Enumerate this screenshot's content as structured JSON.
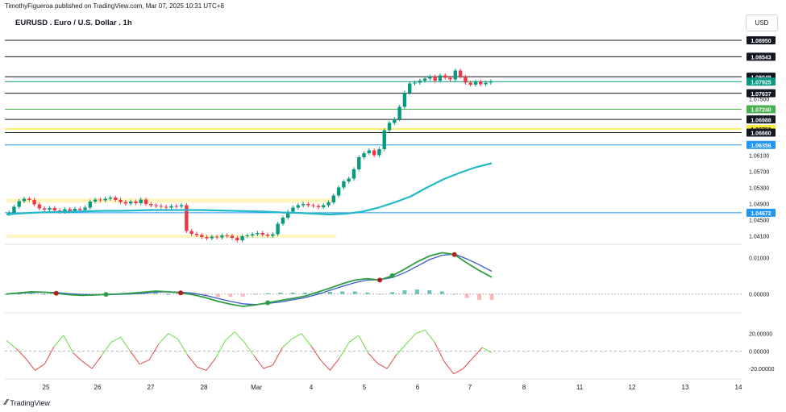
{
  "header": {
    "publish_text": "TimothyFigueroa published on TradingView.com, Mar 07, 2025 10:31 UTC+8",
    "symbol_title": "EURUSD . Euro / U.S. Dollar . 1h",
    "currency_button": "USD",
    "brand": "TradingView"
  },
  "colors": {
    "up_candle": "#089981",
    "down_candle": "#f23645",
    "ma_line": "#22b8c6",
    "macd_line": "#2f9e44",
    "signal_line": "#3a5fcd",
    "macd_down": "#b71c1c",
    "zone_fill": "#fff3b0",
    "level_blue": "#2196f3",
    "level_green": "#4caf50",
    "level_yellow": "#ffeb3b"
  },
  "chart_data": [
    {
      "type": "candlestick",
      "title": "EURUSD . Euro / U.S. Dollar . 1h",
      "x_tick_labels": [
        "25",
        "26",
        "27",
        "28",
        "Mar",
        "4",
        "5",
        "6",
        "7",
        "8",
        "11",
        "12",
        "13",
        "14"
      ],
      "y_axis_labels": [
        "1.06100",
        "1.05700",
        "1.05300",
        "1.04900",
        "1.04500",
        "1.04100",
        "1.07500"
      ],
      "ylim": [
        1.0395,
        1.0915
      ],
      "price_levels": [
        {
          "label": "1.08950",
          "value": 1.0895,
          "style": "black"
        },
        {
          "label": "1.08543",
          "value": 1.08543,
          "style": "black"
        },
        {
          "label": "1.08048",
          "value": 1.08048,
          "style": "black"
        },
        {
          "label": "1.07925",
          "value": 1.07925,
          "style": "teal"
        },
        {
          "label": "1.07637",
          "value": 1.07637,
          "style": "black"
        },
        {
          "label": "1.07240",
          "value": 1.0724,
          "style": "green"
        },
        {
          "label": "1.06988",
          "value": 1.06988,
          "style": "black"
        },
        {
          "label": "1.06750",
          "value": 1.0675,
          "style": "yellow"
        },
        {
          "label": "1.06660",
          "value": 1.0666,
          "style": "black"
        },
        {
          "label": "1.06356",
          "value": 1.06356,
          "style": "blue"
        },
        {
          "label": "1.04672",
          "value": 1.04672,
          "style": "blue"
        }
      ],
      "zones": [
        {
          "x_start": 0,
          "x_end": 65,
          "y_low": 1.0492,
          "y_high": 1.0503
        },
        {
          "x_start": 0,
          "x_end": 65,
          "y_low": 1.0405,
          "y_high": 1.0413
        }
      ],
      "close_series": [
        1.0468,
        1.0482,
        1.0496,
        1.0502,
        1.0499,
        1.0488,
        1.0478,
        1.0475,
        1.0479,
        1.0473,
        1.047,
        1.0476,
        1.0472,
        1.0477,
        1.0474,
        1.048,
        1.0495,
        1.05,
        1.0498,
        1.0502,
        1.0505,
        1.0499,
        1.0494,
        1.049,
        1.0495,
        1.0491,
        1.05,
        1.0489,
        1.0486,
        1.0484,
        1.0482,
        1.048,
        1.0484,
        1.0483,
        1.0486,
        1.0422,
        1.0415,
        1.0412,
        1.0407,
        1.0404,
        1.0408,
        1.0406,
        1.0411,
        1.041,
        1.0405,
        1.0399,
        1.0409,
        1.0411,
        1.0414,
        1.0417,
        1.0413,
        1.041,
        1.0414,
        1.044,
        1.0455,
        1.047,
        1.048,
        1.0486,
        1.0489,
        1.0486,
        1.0484,
        1.0481,
        1.0486,
        1.0493,
        1.051,
        1.053,
        1.0545,
        1.0552,
        1.0575,
        1.0605,
        1.0615,
        1.0622,
        1.061,
        1.0625,
        1.0672,
        1.069,
        1.07,
        1.073,
        1.0765,
        1.0788,
        1.079,
        1.0795,
        1.08,
        1.0805,
        1.0795,
        1.0808,
        1.0802,
        1.0798,
        1.082,
        1.0805,
        1.079,
        1.0785,
        1.0792,
        1.0786,
        1.079,
        1.0793
      ],
      "ma_series": [
        1.0463,
        1.0466,
        1.0468,
        1.0469,
        1.047,
        1.0471,
        1.0472,
        1.0472,
        1.0473,
        1.0474,
        1.0474,
        1.0474,
        1.0474,
        1.0473,
        1.0472,
        1.0471,
        1.047,
        1.0468,
        1.0467,
        1.0465,
        1.0463,
        1.0465,
        1.047,
        1.048,
        1.0493,
        1.0508,
        1.053,
        1.055,
        1.0566,
        1.058,
        1.059
      ],
      "macd": {
        "ylim": [
          -0.0045,
          0.0125
        ],
        "y_axis_labels": [
          "0.01000",
          "0.00000"
        ],
        "macd_series": [
          0.0,
          0.0003,
          0.0006,
          0.0005,
          0.0002,
          -0.0002,
          -0.0004,
          -0.0003,
          -0.0001,
          0.0,
          0.0002,
          0.0005,
          0.0008,
          0.0006,
          0.0003,
          -0.0002,
          -0.001,
          -0.002,
          -0.0028,
          -0.0034,
          -0.003,
          -0.0024,
          -0.0018,
          -0.0012,
          -0.0006,
          0.0005,
          0.0016,
          0.0028,
          0.0038,
          0.0042,
          0.0038,
          0.005,
          0.0068,
          0.0088,
          0.0104,
          0.0113,
          0.0108,
          0.0085,
          0.0064,
          0.0046
        ],
        "signal_series": [
          0.0,
          0.0002,
          0.0004,
          0.0005,
          0.0004,
          0.0001,
          -0.0001,
          -0.0002,
          -0.0002,
          -0.0001,
          0.0,
          0.0002,
          0.0005,
          0.0006,
          0.0005,
          0.0002,
          -0.0004,
          -0.0012,
          -0.002,
          -0.0027,
          -0.0029,
          -0.0026,
          -0.0022,
          -0.0016,
          -0.001,
          -0.0001,
          0.001,
          0.0021,
          0.0031,
          0.0038,
          0.0039,
          0.0045,
          0.0058,
          0.0076,
          0.0094,
          0.0106,
          0.0109,
          0.0096,
          0.008,
          0.0062
        ]
      },
      "oscillator": {
        "ylim": [
          -30,
          40
        ],
        "y_axis_labels": [
          "20.00000",
          "0.00000",
          "-20.00000"
        ],
        "series": [
          12,
          3,
          -8,
          -22,
          -15,
          5,
          18,
          -2,
          -12,
          -20,
          -5,
          10,
          16,
          0,
          -15,
          -10,
          8,
          20,
          14,
          -4,
          -18,
          -22,
          -8,
          12,
          22,
          10,
          -5,
          -20,
          -16,
          4,
          14,
          20,
          6,
          -10,
          -22,
          -8,
          10,
          18,
          -2,
          -14,
          -20,
          -4,
          8,
          20,
          24,
          10,
          -12,
          -26,
          -20,
          -8,
          4,
          -2
        ]
      }
    }
  ]
}
